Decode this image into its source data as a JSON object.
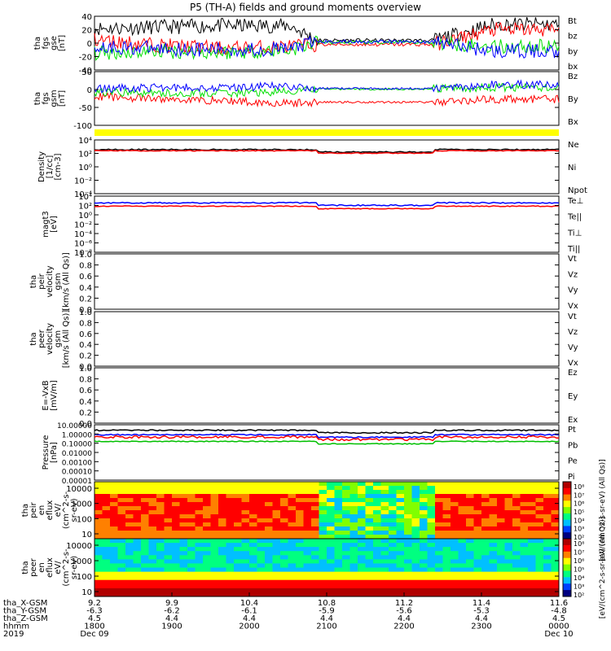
{
  "title": "P5 (TH-A) fields and ground moments overview",
  "colors": {
    "black": "#000000",
    "red": "#ff0000",
    "green": "#00e000",
    "blue": "#0000ff",
    "yellow": "#ffff00"
  },
  "chart_data": [
    {
      "type": "line",
      "panel": "fgs",
      "ylabel": [
        "tha",
        "fgs",
        "gse",
        "[nT]"
      ],
      "yticks": [
        "40",
        "20",
        "0",
        "-20",
        "-40"
      ],
      "ylim": [
        -40,
        40
      ],
      "series": [
        {
          "name": "Bt",
          "color": "#000000",
          "level": [
            22,
            24,
            26,
            26,
            4,
            4,
            28,
            28
          ]
        },
        {
          "name": "bz",
          "color": "#ff0000",
          "level": [
            5,
            -3,
            -8,
            -5,
            -2,
            -2,
            20,
            20
          ]
        },
        {
          "name": "by",
          "color": "#00e000",
          "level": [
            -15,
            -12,
            -14,
            -10,
            1,
            1,
            -5,
            -5
          ]
        },
        {
          "name": "bx",
          "color": "#0000ff",
          "level": [
            -5,
            -8,
            -10,
            -8,
            2,
            2,
            -12,
            -12
          ]
        }
      ]
    },
    {
      "type": "line",
      "panel": "fgs-gsm",
      "ylabel": [
        "tha",
        "fgs",
        "gsm",
        "[nT]"
      ],
      "yticks": [
        "50",
        "0",
        "-50",
        "-100"
      ],
      "ylim": [
        -130,
        55
      ],
      "series": [
        {
          "name": "Bz",
          "color": "#ff0000",
          "level": [
            -30,
            -40,
            -45,
            -55,
            -50,
            -50,
            -40,
            -40
          ]
        },
        {
          "name": "By",
          "color": "#00e000",
          "level": [
            -15,
            -20,
            -20,
            -15,
            -5,
            -5,
            0,
            0
          ]
        },
        {
          "name": "Bx",
          "color": "#0000ff",
          "level": [
            -5,
            0,
            0,
            5,
            -3,
            -3,
            10,
            10
          ]
        }
      ]
    },
    {
      "type": "line",
      "panel": "density",
      "scale": "log",
      "ylabel": [
        "Density",
        "[1/cc]",
        "[cm-3]"
      ],
      "yticks": [
        "10⁴",
        "10²",
        "10⁰",
        "10⁻²",
        "10⁻⁴"
      ],
      "series": [
        {
          "name": "Ne",
          "color": "#ff0000"
        },
        {
          "name": "Ni",
          "color": "#000000"
        },
        {
          "name": "Npot",
          "color": "#0000ff"
        }
      ]
    },
    {
      "type": "line",
      "panel": "temperature",
      "scale": "log",
      "ylabel": [
        "magt3",
        "[eV]"
      ],
      "yticks": [
        "10⁴",
        "10²",
        "10⁰",
        "10⁻²",
        "10⁻⁴",
        "10⁻⁶",
        "10⁻⁸"
      ],
      "series": [
        {
          "name": "Te⊥",
          "color": "#ff0000"
        },
        {
          "name": "Te||",
          "color": "#000000"
        },
        {
          "name": "Ti⊥",
          "color": "#0000ff"
        },
        {
          "name": "Ti||",
          "color": "#00e000"
        }
      ]
    },
    {
      "type": "line",
      "panel": "peir-velocity",
      "ylabel": [
        "tha",
        "peir",
        "velocity",
        "gsm",
        "[km/s (All Qs)]"
      ],
      "yticks": [
        "1.0",
        "0.8",
        "0.6",
        "0.4",
        "0.2",
        "0.0"
      ],
      "ylim": [
        0,
        1
      ],
      "series": [
        {
          "name": "Vt",
          "color": "#000000"
        },
        {
          "name": "Vz",
          "color": "#ff0000"
        },
        {
          "name": "Vy",
          "color": "#00e000"
        },
        {
          "name": "Vx",
          "color": "#0000ff"
        }
      ]
    },
    {
      "type": "line",
      "panel": "peer-velocity",
      "ylabel": [
        "tha",
        "peer",
        "velocity",
        "gsm",
        "[km/s (All Qs)]"
      ],
      "yticks": [
        "1.0",
        "0.8",
        "0.6",
        "0.4",
        "0.2",
        "0.0"
      ],
      "ylim": [
        0,
        1
      ],
      "series": [
        {
          "name": "Vt",
          "color": "#000000"
        },
        {
          "name": "Vz",
          "color": "#ff0000"
        },
        {
          "name": "Vy",
          "color": "#00e000"
        },
        {
          "name": "Vx",
          "color": "#0000ff"
        }
      ]
    },
    {
      "type": "line",
      "panel": "efield",
      "ylabel": [
        "E=-VxB",
        "[mV/m]"
      ],
      "yticks": [
        "1.0",
        "0.8",
        "0.6",
        "0.4",
        "0.2",
        "0.0"
      ],
      "ylim": [
        0,
        1
      ],
      "series": [
        {
          "name": "Ez",
          "color": "#ff0000"
        },
        {
          "name": "Ey",
          "color": "#00e000"
        },
        {
          "name": "Ex",
          "color": "#0000ff"
        }
      ]
    },
    {
      "type": "line",
      "panel": "pressure",
      "scale": "log",
      "ylabel": [
        "Pressure",
        "[nPa]"
      ],
      "yticks": [
        "10.00000",
        "1.00000",
        "0.10000",
        "0.01000",
        "0.00100",
        "0.00010",
        "0.00001"
      ],
      "series": [
        {
          "name": "Pt",
          "color": "#000000"
        },
        {
          "name": "Pb",
          "color": "#ff0000"
        },
        {
          "name": "Pe",
          "color": "#00e000"
        },
        {
          "name": "Pi",
          "color": "#0000ff"
        }
      ]
    },
    {
      "type": "heatmap",
      "panel": "peir-eflux",
      "ylabel": [
        "tha",
        "peir",
        "en",
        "eflux",
        "eV/",
        "(cm^2-s-",
        "sr-eV)"
      ],
      "yticks": [
        "10000",
        "1000",
        "100",
        "10"
      ],
      "colorbar": {
        "label": "[eV/(cm^2-s-sr-eV) (All Qs)]",
        "ticks": [
          "10⁸",
          "10⁷",
          "10⁶",
          "10⁵",
          "10⁴",
          "10³",
          "10²"
        ]
      }
    },
    {
      "type": "heatmap",
      "panel": "peer-eflux",
      "ylabel": [
        "tha",
        "peer",
        "en",
        "eflux",
        "eV/",
        "(cm^2-s-",
        "sr-eV)"
      ],
      "yticks": [
        "10000",
        "1000",
        "100",
        "10"
      ],
      "colorbar": {
        "label": "[eV/(cm^2-s-sr-eV) (All Qs)]",
        "ticks": [
          "10⁸",
          "10⁷",
          "10⁶",
          "10⁵",
          "10⁴",
          "10³",
          "10²"
        ]
      }
    }
  ],
  "x_axis": {
    "rows": [
      {
        "label": "tha_X-GSM",
        "values": [
          "9.2",
          "9.9",
          "10.4",
          "10.8",
          "11.2",
          "11.4",
          "11.6"
        ]
      },
      {
        "label": "tha_Y-GSM",
        "values": [
          "-6.3",
          "-6.2",
          "-6.1",
          "-5.9",
          "-5.6",
          "-5.3",
          "-4.8"
        ]
      },
      {
        "label": "tha_Z-GSM",
        "values": [
          "4.5",
          "4.4",
          "4.4",
          "4.4",
          "4.4",
          "4.4",
          "4.5"
        ]
      },
      {
        "label": "hhmm",
        "values": [
          "1800",
          "1900",
          "2000",
          "2100",
          "2200",
          "2300",
          "0000"
        ]
      }
    ],
    "year": "2019",
    "date_start": "Dec 09",
    "date_end": "Dec 10"
  }
}
